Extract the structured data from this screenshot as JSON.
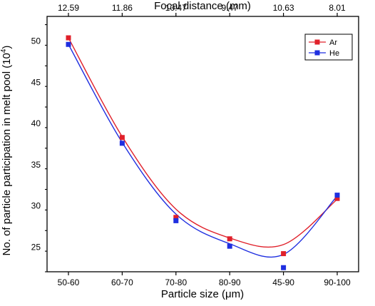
{
  "chart_data": {
    "type": "scatter",
    "categories": [
      "50-60",
      "60-70",
      "70-80",
      "80-90",
      "45-90",
      "90-100"
    ],
    "top_categories": [
      "12.59",
      "11.86",
      "10.47",
      "9.47",
      "10.63",
      "8.01"
    ],
    "xlabel": "Particle size (μm)",
    "top_xlabel": "Focal distance (mm)",
    "ylabel": "No. of particle participation in melt pool (10",
    "ylabel_sup": "4",
    "ylabel_end": ")",
    "ylim": [
      22,
      53
    ],
    "yticks": [
      25,
      30,
      35,
      40,
      45,
      50
    ],
    "ytick_labels": [
      "25",
      "30",
      "35",
      "40",
      "45",
      "50"
    ],
    "legend_position": "top-right",
    "series": [
      {
        "name": "Ar",
        "color": "#e0202a",
        "values": [
          50.4,
          38.3,
          28.6,
          26.0,
          24.2,
          30.9
        ],
        "fit": [
          50.4,
          38.4,
          29.6,
          26.1,
          25.3,
          30.8
        ]
      },
      {
        "name": "He",
        "color": "#1f2fe0",
        "values": [
          49.6,
          37.6,
          28.2,
          25.1,
          22.5,
          31.3
        ],
        "fit": [
          49.6,
          37.7,
          29.0,
          25.4,
          24.1,
          31.2
        ]
      }
    ]
  }
}
